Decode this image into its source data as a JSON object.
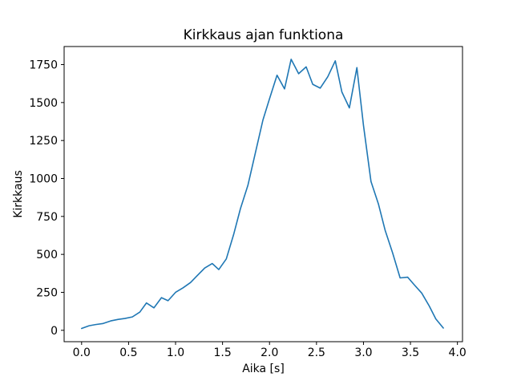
{
  "chart": {
    "title": "Kirkkaus ajan funktiona",
    "xlabel": "Aika [s]",
    "ylabel": "Kirkkaus"
  },
  "chart_data": {
    "type": "line",
    "title": "Kirkkaus ajan funktiona",
    "xlabel": "Aika [s]",
    "ylabel": "Kirkkaus",
    "line_color": "#1f77b4",
    "background_color": "#ffffff",
    "grid": false,
    "legend": "none",
    "xlim": [
      -0.186,
      4.054
    ],
    "ylim": [
      -75,
      1869
    ],
    "xtick_values": [
      0.0,
      0.5,
      1.0,
      1.5,
      2.0,
      2.5,
      3.0,
      3.5,
      4.0
    ],
    "xtick_labels": [
      "0.0",
      "0.5",
      "1.0",
      "1.5",
      "2.0",
      "2.5",
      "3.0",
      "3.5",
      "4.0"
    ],
    "ytick_values": [
      0,
      250,
      500,
      750,
      1000,
      1250,
      1500,
      1750
    ],
    "ytick_labels": [
      "0",
      "250",
      "500",
      "750",
      "1000",
      "1250",
      "1500",
      "1750"
    ],
    "x": [
      0.0,
      0.08,
      0.15,
      0.23,
      0.31,
      0.39,
      0.46,
      0.54,
      0.62,
      0.69,
      0.77,
      0.85,
      0.92,
      1.0,
      1.08,
      1.16,
      1.23,
      1.31,
      1.39,
      1.46,
      1.54,
      1.62,
      1.69,
      1.77,
      1.85,
      1.93,
      2.0,
      2.08,
      2.16,
      2.23,
      2.31,
      2.39,
      2.46,
      2.54,
      2.62,
      2.7,
      2.77,
      2.85,
      2.93,
      3.0,
      3.08,
      3.16,
      3.23,
      3.31,
      3.39,
      3.47,
      3.54,
      3.62,
      3.7,
      3.77,
      3.85
    ],
    "y": [
      12,
      30,
      38,
      45,
      62,
      72,
      78,
      88,
      120,
      180,
      148,
      215,
      195,
      250,
      280,
      315,
      360,
      410,
      440,
      400,
      470,
      635,
      800,
      955,
      1170,
      1385,
      1525,
      1680,
      1590,
      1785,
      1690,
      1735,
      1620,
      1595,
      1670,
      1775,
      1570,
      1465,
      1730,
      1350,
      980,
      830,
      660,
      510,
      345,
      350,
      300,
      245,
      160,
      75,
      15
    ]
  }
}
